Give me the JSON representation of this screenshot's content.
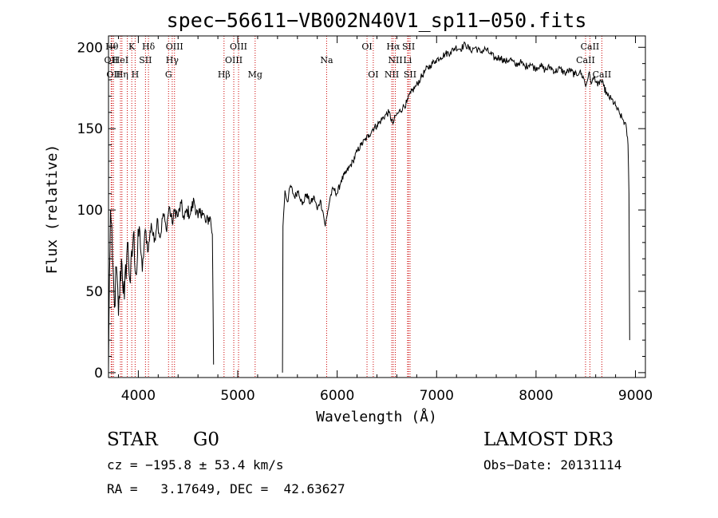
{
  "chart_data": {
    "type": "line",
    "title": "spec−56611−VB002N40V1_sp11−050.fits",
    "xlabel": "Wavelength (Å)",
    "ylabel": "Flux (relative)",
    "xlim": [
      3700,
      9100
    ],
    "ylim": [
      -3,
      207
    ],
    "xticks": [
      4000,
      5000,
      6000,
      7000,
      8000,
      9000
    ],
    "yticks": [
      0,
      50,
      100,
      150,
      200
    ],
    "colors": {
      "axes": "#000000",
      "line": "#000000",
      "marker": "#cc0000"
    },
    "series": [
      {
        "name": "flux",
        "segments": [
          [
            [
              3700,
              2
            ],
            [
              3710,
              60
            ],
            [
              3720,
              100
            ],
            [
              3740,
              70
            ],
            [
              3760,
              40
            ],
            [
              3780,
              65
            ],
            [
              3800,
              35
            ],
            [
              3830,
              70
            ],
            [
              3860,
              45
            ],
            [
              3890,
              80
            ],
            [
              3920,
              55
            ],
            [
              3950,
              85
            ],
            [
              3980,
              60
            ],
            [
              4010,
              90
            ],
            [
              4040,
              62
            ],
            [
              4070,
              88
            ],
            [
              4100,
              75
            ],
            [
              4130,
              92
            ],
            [
              4160,
              80
            ],
            [
              4190,
              95
            ],
            [
              4220,
              83
            ],
            [
              4250,
              98
            ],
            [
              4280,
              88
            ],
            [
              4310,
              102
            ],
            [
              4340,
              92
            ],
            [
              4370,
              100
            ],
            [
              4400,
              96
            ],
            [
              4430,
              104
            ],
            [
              4460,
              94
            ],
            [
              4490,
              100
            ],
            [
              4520,
              97
            ],
            [
              4560,
              106
            ],
            [
              4600,
              95
            ],
            [
              4640,
              100
            ],
            [
              4680,
              92
            ],
            [
              4720,
              96
            ],
            [
              4745,
              85
            ],
            [
              4752,
              40
            ],
            [
              4757,
              5
            ]
          ],
          [
            [
              5450,
              0
            ],
            [
              5455,
              90
            ],
            [
              5475,
              112
            ],
            [
              5500,
              105
            ],
            [
              5530,
              115
            ],
            [
              5570,
              108
            ],
            [
              5610,
              112
            ],
            [
              5650,
              103
            ],
            [
              5690,
              110
            ],
            [
              5730,
              104
            ],
            [
              5770,
              108
            ],
            [
              5800,
              100
            ],
            [
              5830,
              106
            ],
            [
              5860,
              98
            ],
            [
              5880,
              90
            ],
            [
              5900,
              97
            ],
            [
              5930,
              108
            ],
            [
              5960,
              113
            ],
            [
              6000,
              110
            ],
            [
              6040,
              118
            ],
            [
              6080,
              122
            ],
            [
              6120,
              126
            ],
            [
              6160,
              130
            ],
            [
              6200,
              136
            ],
            [
              6240,
              140
            ],
            [
              6280,
              143
            ],
            [
              6320,
              146
            ],
            [
              6360,
              150
            ],
            [
              6400,
              152
            ],
            [
              6440,
              155
            ],
            [
              6480,
              158
            ],
            [
              6520,
              160
            ],
            [
              6560,
              153
            ],
            [
              6590,
              158
            ],
            [
              6620,
              160
            ],
            [
              6660,
              163
            ],
            [
              6700,
              166
            ],
            [
              6740,
              172
            ],
            [
              6790,
              176
            ],
            [
              6840,
              181
            ],
            [
              6890,
              186
            ],
            [
              6940,
              189
            ],
            [
              6990,
              192
            ],
            [
              7040,
              194
            ],
            [
              7090,
              196
            ],
            [
              7140,
              197
            ],
            [
              7190,
              200
            ],
            [
              7240,
              199
            ],
            [
              7290,
              202
            ],
            [
              7340,
              198
            ],
            [
              7390,
              200
            ],
            [
              7440,
              197
            ],
            [
              7490,
              199
            ],
            [
              7540,
              196
            ],
            [
              7590,
              193
            ],
            [
              7640,
              194
            ],
            [
              7690,
              191
            ],
            [
              7740,
              193
            ],
            [
              7790,
              189
            ],
            [
              7840,
              191
            ],
            [
              7890,
              188
            ],
            [
              7940,
              190
            ],
            [
              7990,
              187
            ],
            [
              8040,
              189
            ],
            [
              8090,
              186
            ],
            [
              8140,
              188
            ],
            [
              8190,
              185
            ],
            [
              8240,
              187
            ],
            [
              8290,
              184
            ],
            [
              8340,
              186
            ],
            [
              8390,
              183
            ],
            [
              8440,
              185
            ],
            [
              8480,
              181
            ],
            [
              8500,
              176
            ],
            [
              8530,
              184
            ],
            [
              8560,
              178
            ],
            [
              8590,
              182
            ],
            [
              8620,
              176
            ],
            [
              8650,
              180
            ],
            [
              8680,
              176
            ],
            [
              8720,
              170
            ],
            [
              8760,
              168
            ],
            [
              8800,
              164
            ],
            [
              8840,
              159
            ],
            [
              8880,
              155
            ],
            [
              8910,
              150
            ],
            [
              8925,
              140
            ],
            [
              8935,
              110
            ],
            [
              8942,
              20
            ]
          ]
        ]
      }
    ],
    "line_markers": [
      {
        "wavelength": 3734,
        "row": 1,
        "label": "Hθ"
      },
      {
        "wavelength": 3727,
        "row": 2,
        "label": "OII"
      },
      {
        "wavelength": 3750,
        "row": 3,
        "label": "OII"
      },
      {
        "wavelength": 3820,
        "row": 2,
        "label": "HeI"
      },
      {
        "wavelength": 3835,
        "row": 3,
        "label": "Hη"
      },
      {
        "wavelength": 3889,
        "row": 3,
        "label": ""
      },
      {
        "wavelength": 3934,
        "row": 1,
        "label": "K"
      },
      {
        "wavelength": 3968,
        "row": 3,
        "label": "H"
      },
      {
        "wavelength": 4072,
        "row": 2,
        "label": "SII"
      },
      {
        "wavelength": 4102,
        "row": 1,
        "label": "Hδ"
      },
      {
        "wavelength": 4304,
        "row": 3,
        "label": "G"
      },
      {
        "wavelength": 4341,
        "row": 2,
        "label": "Hγ"
      },
      {
        "wavelength": 4364,
        "row": 1,
        "label": "OIII"
      },
      {
        "wavelength": 4862,
        "row": 3,
        "label": "Hβ"
      },
      {
        "wavelength": 4960,
        "row": 2,
        "label": "OIII"
      },
      {
        "wavelength": 5008,
        "row": 1,
        "label": "OIII"
      },
      {
        "wavelength": 5175,
        "row": 3,
        "label": "Mg"
      },
      {
        "wavelength": 5894,
        "row": 2,
        "label": "Na"
      },
      {
        "wavelength": 6300,
        "row": 1,
        "label": "OI"
      },
      {
        "wavelength": 6363,
        "row": 3,
        "label": "OI"
      },
      {
        "wavelength": 6549,
        "row": 3,
        "label": "NII"
      },
      {
        "wavelength": 6564,
        "row": 1,
        "label": "Hα"
      },
      {
        "wavelength": 6585,
        "row": 2,
        "label": "NII"
      },
      {
        "wavelength": 6708,
        "row": 2,
        "label": "Li"
      },
      {
        "wavelength": 6718,
        "row": 1,
        "label": "SII"
      },
      {
        "wavelength": 6733,
        "row": 3,
        "label": "SII"
      },
      {
        "wavelength": 8498,
        "row": 2,
        "label": "CaII"
      },
      {
        "wavelength": 8542,
        "row": 1,
        "label": "CaII"
      },
      {
        "wavelength": 8662,
        "row": 3,
        "label": "CaII"
      }
    ]
  },
  "info": {
    "class_label": "STAR",
    "subclass_label": "G0",
    "survey_label": "LAMOST DR3",
    "redshift_text": "cz = −195.8 ± 53.4 km/s",
    "obs_date_text": "Obs−Date: 20131114",
    "coords_text": "RA =   3.17649, DEC =  42.63627"
  }
}
